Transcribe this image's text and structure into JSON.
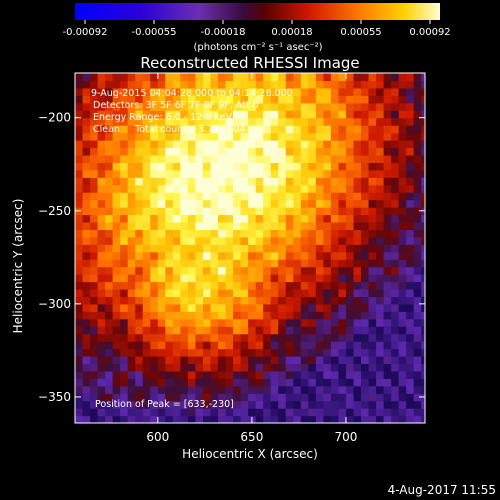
{
  "chart_data": {
    "type": "heatmap",
    "title": "Reconstructed RHESSI Image",
    "xlabel": "Heliocentric X (arcsec)",
    "ylabel": "Heliocentric Y (arcsec)",
    "xlim": [
      556,
      742
    ],
    "ylim": [
      -364,
      -176
    ],
    "x_ticks": [
      600,
      650,
      700
    ],
    "y_ticks": [
      -200,
      -250,
      -300,
      -350
    ],
    "colorbar": {
      "ticks": [
        "-0.00092",
        "-0.00055",
        "-0.00018",
        "0.00018",
        "0.00055",
        "0.00092"
      ],
      "unit_label": "(photons cm⁻² s⁻¹ asec⁻²)",
      "range": [
        -0.00092,
        0.00092
      ]
    },
    "info": {
      "time": "9-Aug-2015 04:04:28.000 to 04:14:28.000",
      "detectors": "Detectors: 3F 5F 6F 7F 8F 9F, Att 0",
      "energy": "Energy Range: 6.0 - 12.0 keV",
      "method": "Clean     Total counts: 3.71E+04"
    },
    "peak_label": "Position of Peak = [633,-230]",
    "peak": [
      633,
      -230
    ],
    "grid": false,
    "colormap": "heat: blue-purple (negative) to red-orange-yellow-white (positive)"
  },
  "footer": {
    "timestamp": "4-Aug-2017 11:55"
  },
  "colors": {
    "background": "#000000",
    "negative": "#5a1fb0",
    "positive_low": "#c41a00",
    "positive_mid": "#ff8a00",
    "positive_high": "#ffff40"
  }
}
